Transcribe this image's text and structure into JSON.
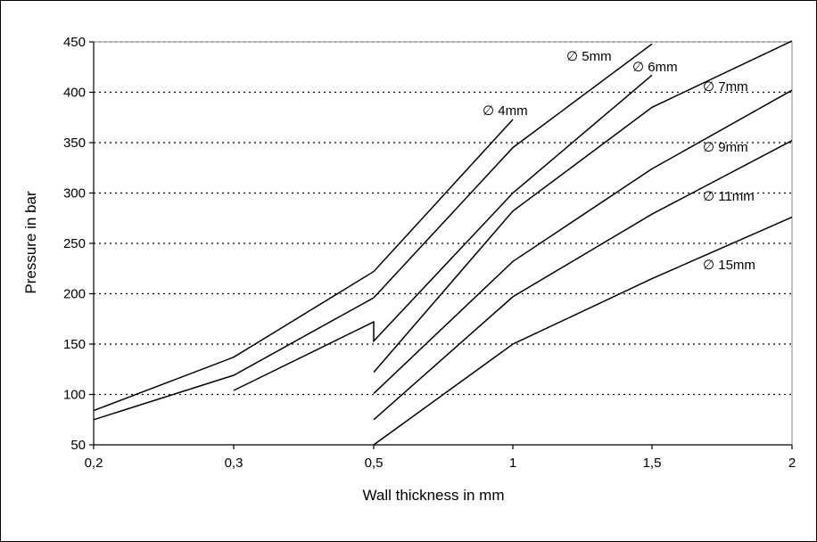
{
  "chart_data": {
    "type": "line",
    "title": "",
    "xlabel": "Wall thickness in mm",
    "ylabel": "Pressure in bar",
    "x_ticks": [
      "0,2",
      "0,3",
      "0,5",
      "1",
      "1,5",
      "2"
    ],
    "y_ticks": [
      "50",
      "100",
      "150",
      "200",
      "250",
      "300",
      "350",
      "400",
      "450"
    ],
    "ylim": [
      50,
      450
    ],
    "grid": "horizontal dotted",
    "line_color": "#000000",
    "series": [
      {
        "name": "∅ 4mm",
        "x": [
          0.2,
          0.3,
          0.5,
          1.0
        ],
        "y": [
          84,
          137,
          222,
          373
        ]
      },
      {
        "name": "∅ 5mm",
        "x": [
          0.2,
          0.3,
          0.5,
          1.0,
          1.5
        ],
        "y": [
          75,
          119,
          196,
          345,
          448
        ]
      },
      {
        "name": "∅ 6mm",
        "x": [
          0.3,
          0.5,
          0.5,
          1.0,
          1.5
        ],
        "y": [
          104,
          172,
          153,
          300,
          417
        ]
      },
      {
        "name": "∅ 7mm",
        "x": [
          0.5,
          1.0,
          1.5,
          2.0
        ],
        "y": [
          122,
          282,
          385,
          451
        ]
      },
      {
        "name": "∅ 9mm",
        "x": [
          0.5,
          1.0,
          1.5,
          2.0
        ],
        "y": [
          101,
          232,
          324,
          402
        ]
      },
      {
        "name": "∅ 11mm",
        "x": [
          0.5,
          1.0,
          1.5,
          2.0
        ],
        "y": [
          75,
          197,
          279,
          352
        ]
      },
      {
        "name": "∅ 15mm",
        "x": [
          0.5,
          1.0,
          1.5,
          2.0
        ],
        "y": [
          50,
          150,
          215,
          276
        ]
      }
    ]
  }
}
